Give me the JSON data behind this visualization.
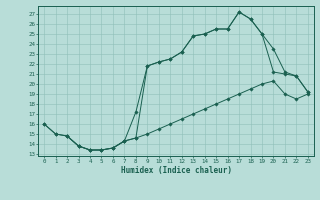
{
  "bg_color": "#b8ddd8",
  "line_color": "#1a6050",
  "grid_color": "#90c0b8",
  "xlabel": "Humidex (Indice chaleur)",
  "xlim": [
    -0.5,
    23.5
  ],
  "ylim": [
    12.8,
    27.8
  ],
  "yticks": [
    13,
    14,
    15,
    16,
    17,
    18,
    19,
    20,
    21,
    22,
    23,
    24,
    25,
    26,
    27
  ],
  "xticks": [
    0,
    1,
    2,
    3,
    4,
    5,
    6,
    7,
    8,
    9,
    10,
    11,
    12,
    13,
    14,
    15,
    16,
    17,
    18,
    19,
    20,
    21,
    22,
    23
  ],
  "curve1_x": [
    0,
    1,
    2,
    3,
    4,
    5,
    6,
    7,
    8,
    9,
    10,
    11,
    12,
    13,
    14,
    15,
    16,
    17,
    18,
    19,
    20,
    21,
    22,
    23
  ],
  "curve1_y": [
    16.0,
    15.0,
    14.8,
    13.8,
    13.4,
    13.4,
    13.6,
    14.3,
    14.6,
    15.0,
    15.5,
    16.0,
    16.5,
    17.0,
    17.5,
    18.0,
    18.5,
    19.0,
    19.5,
    20.0,
    20.3,
    19.0,
    18.5,
    19.0
  ],
  "curve2_x": [
    0,
    1,
    2,
    3,
    4,
    5,
    6,
    7,
    8,
    9,
    10,
    11,
    12,
    13,
    14,
    15,
    16,
    17,
    18,
    19,
    20,
    21,
    22,
    23
  ],
  "curve2_y": [
    16.0,
    15.0,
    14.8,
    13.8,
    13.4,
    13.4,
    13.6,
    14.3,
    17.2,
    21.8,
    22.2,
    22.5,
    23.2,
    24.8,
    25.0,
    25.5,
    25.5,
    27.2,
    26.5,
    25.0,
    21.2,
    21.0,
    20.8,
    19.2
  ],
  "curve3_x": [
    2,
    3,
    4,
    5,
    6,
    7,
    8,
    9,
    10,
    11,
    12,
    13,
    14,
    15,
    16,
    17,
    18,
    19,
    20,
    21,
    22,
    23
  ],
  "curve3_y": [
    14.8,
    13.8,
    13.4,
    13.4,
    13.6,
    14.3,
    14.6,
    21.8,
    22.2,
    22.5,
    23.2,
    24.8,
    25.0,
    25.5,
    25.5,
    27.2,
    26.5,
    25.0,
    23.5,
    21.2,
    20.8,
    19.2
  ]
}
